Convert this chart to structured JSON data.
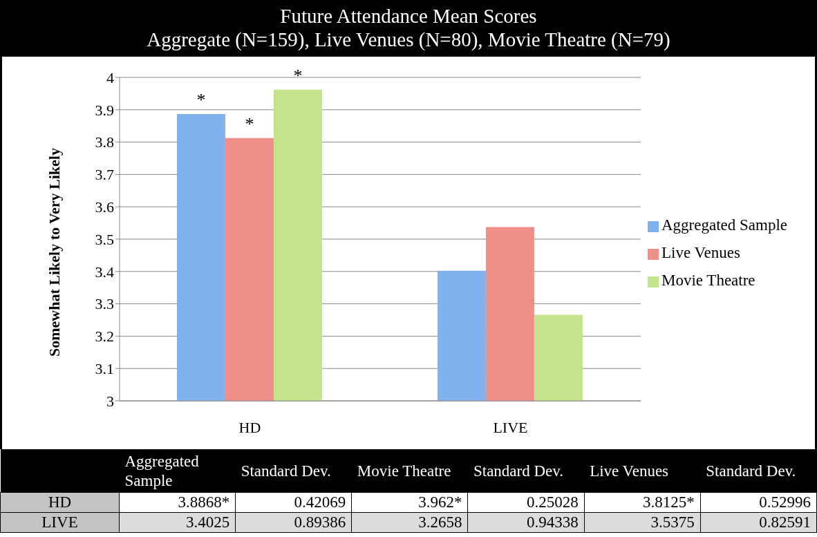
{
  "chart_data": {
    "type": "bar",
    "title": "Future Attendance Mean Scores",
    "subtitle": "Aggregate (N=159), Live Venues (N=80), Movie Theatre (N=79)",
    "ylabel": "Somewhat Likely to Very Likely",
    "categories": [
      "HD",
      "LIVE"
    ],
    "series": [
      {
        "name": "Aggregated Sample",
        "color": "#82b2ee",
        "values": [
          3.8868,
          3.4025
        ]
      },
      {
        "name": "Live Venues",
        "color": "#ee8f89",
        "values": [
          3.8125,
          3.5375
        ]
      },
      {
        "name": "Movie Theatre",
        "color": "#c4e38c",
        "values": [
          3.962,
          3.2658
        ]
      }
    ],
    "ylim": [
      3,
      4
    ],
    "yticks": [
      3,
      {
        "value": 3.1,
        "label": "3.1"
      },
      {
        "value": 3.2,
        "label": "3.2"
      },
      {
        "value": 3.3,
        "label": "3.3"
      },
      {
        "value": 3.4,
        "label": "3.4"
      },
      {
        "value": 3.5,
        "label": "3.5"
      },
      {
        "value": 3.6,
        "label": "3.6"
      },
      {
        "value": 3.7,
        "label": "3.7"
      },
      {
        "value": 3.8,
        "label": "3.8"
      },
      {
        "value": 3.9,
        "label": "3.9"
      },
      4
    ],
    "grid": "y",
    "legend": "right",
    "annotations": [
      "*",
      "*",
      "*",
      "3.8868*",
      "3.4025",
      "Standard Dev.",
      "0.42069",
      "0.89386",
      "3.962*",
      "3.2658",
      "Standard Dev.",
      "0.25028",
      "0.94338",
      "3.8125*",
      "3.5375",
      "Standard Dev.",
      "0.52996",
      "0.82591"
    ]
  }
}
